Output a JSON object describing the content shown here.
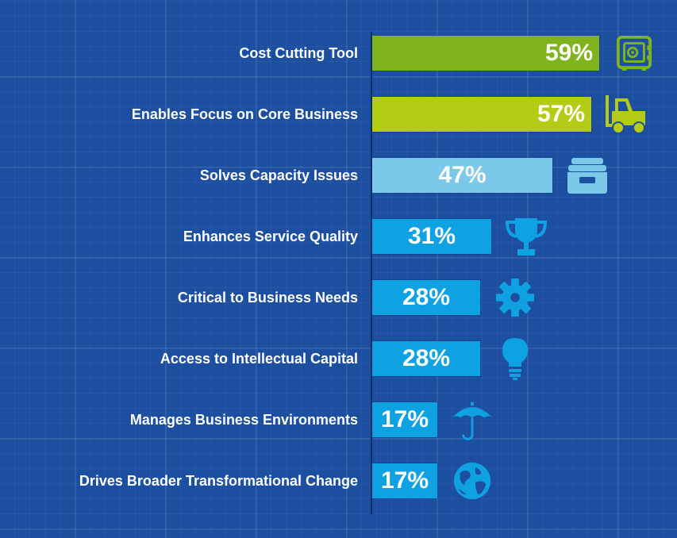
{
  "chart_data": {
    "type": "bar",
    "orientation": "horizontal",
    "categories": [
      "Cost Cutting Tool",
      "Enables Focus on Core Business",
      "Solves Capacity Issues",
      "Enhances Service Quality",
      "Critical to Business Needs",
      "Access to Intellectual Capital",
      "Manages Business Environments",
      "Drives Broader Transformational Change"
    ],
    "values": [
      59,
      57,
      47,
      31,
      28,
      28,
      17,
      17
    ],
    "value_labels": [
      "59%",
      "57%",
      "47%",
      "31%",
      "28%",
      "28%",
      "17%",
      "17%"
    ],
    "bar_colors": [
      "#7fb41f",
      "#b5cc17",
      "#7cc8e8",
      "#0fa2e3",
      "#0fa2e3",
      "#0fa2e3",
      "#0fa2e3",
      "#0fa2e3"
    ],
    "icons": [
      "safe-icon",
      "forklift-icon",
      "storage-bin-icon",
      "trophy-icon",
      "gear-icon",
      "lightbulb-icon",
      "umbrella-icon",
      "globe-icon"
    ],
    "icon_colors": [
      "#7fb41f",
      "#b5cc17",
      "#7cc8e8",
      "#0fa2e3",
      "#0fa2e3",
      "#0fa2e3",
      "#0fa2e3",
      "#0fa2e3"
    ],
    "xlim": [
      0,
      100
    ],
    "title": "",
    "xlabel": "",
    "ylabel": ""
  },
  "colors": {
    "background": "#1d4fa0",
    "axis": "#0c2e6b",
    "label_text": "#ffffff"
  }
}
